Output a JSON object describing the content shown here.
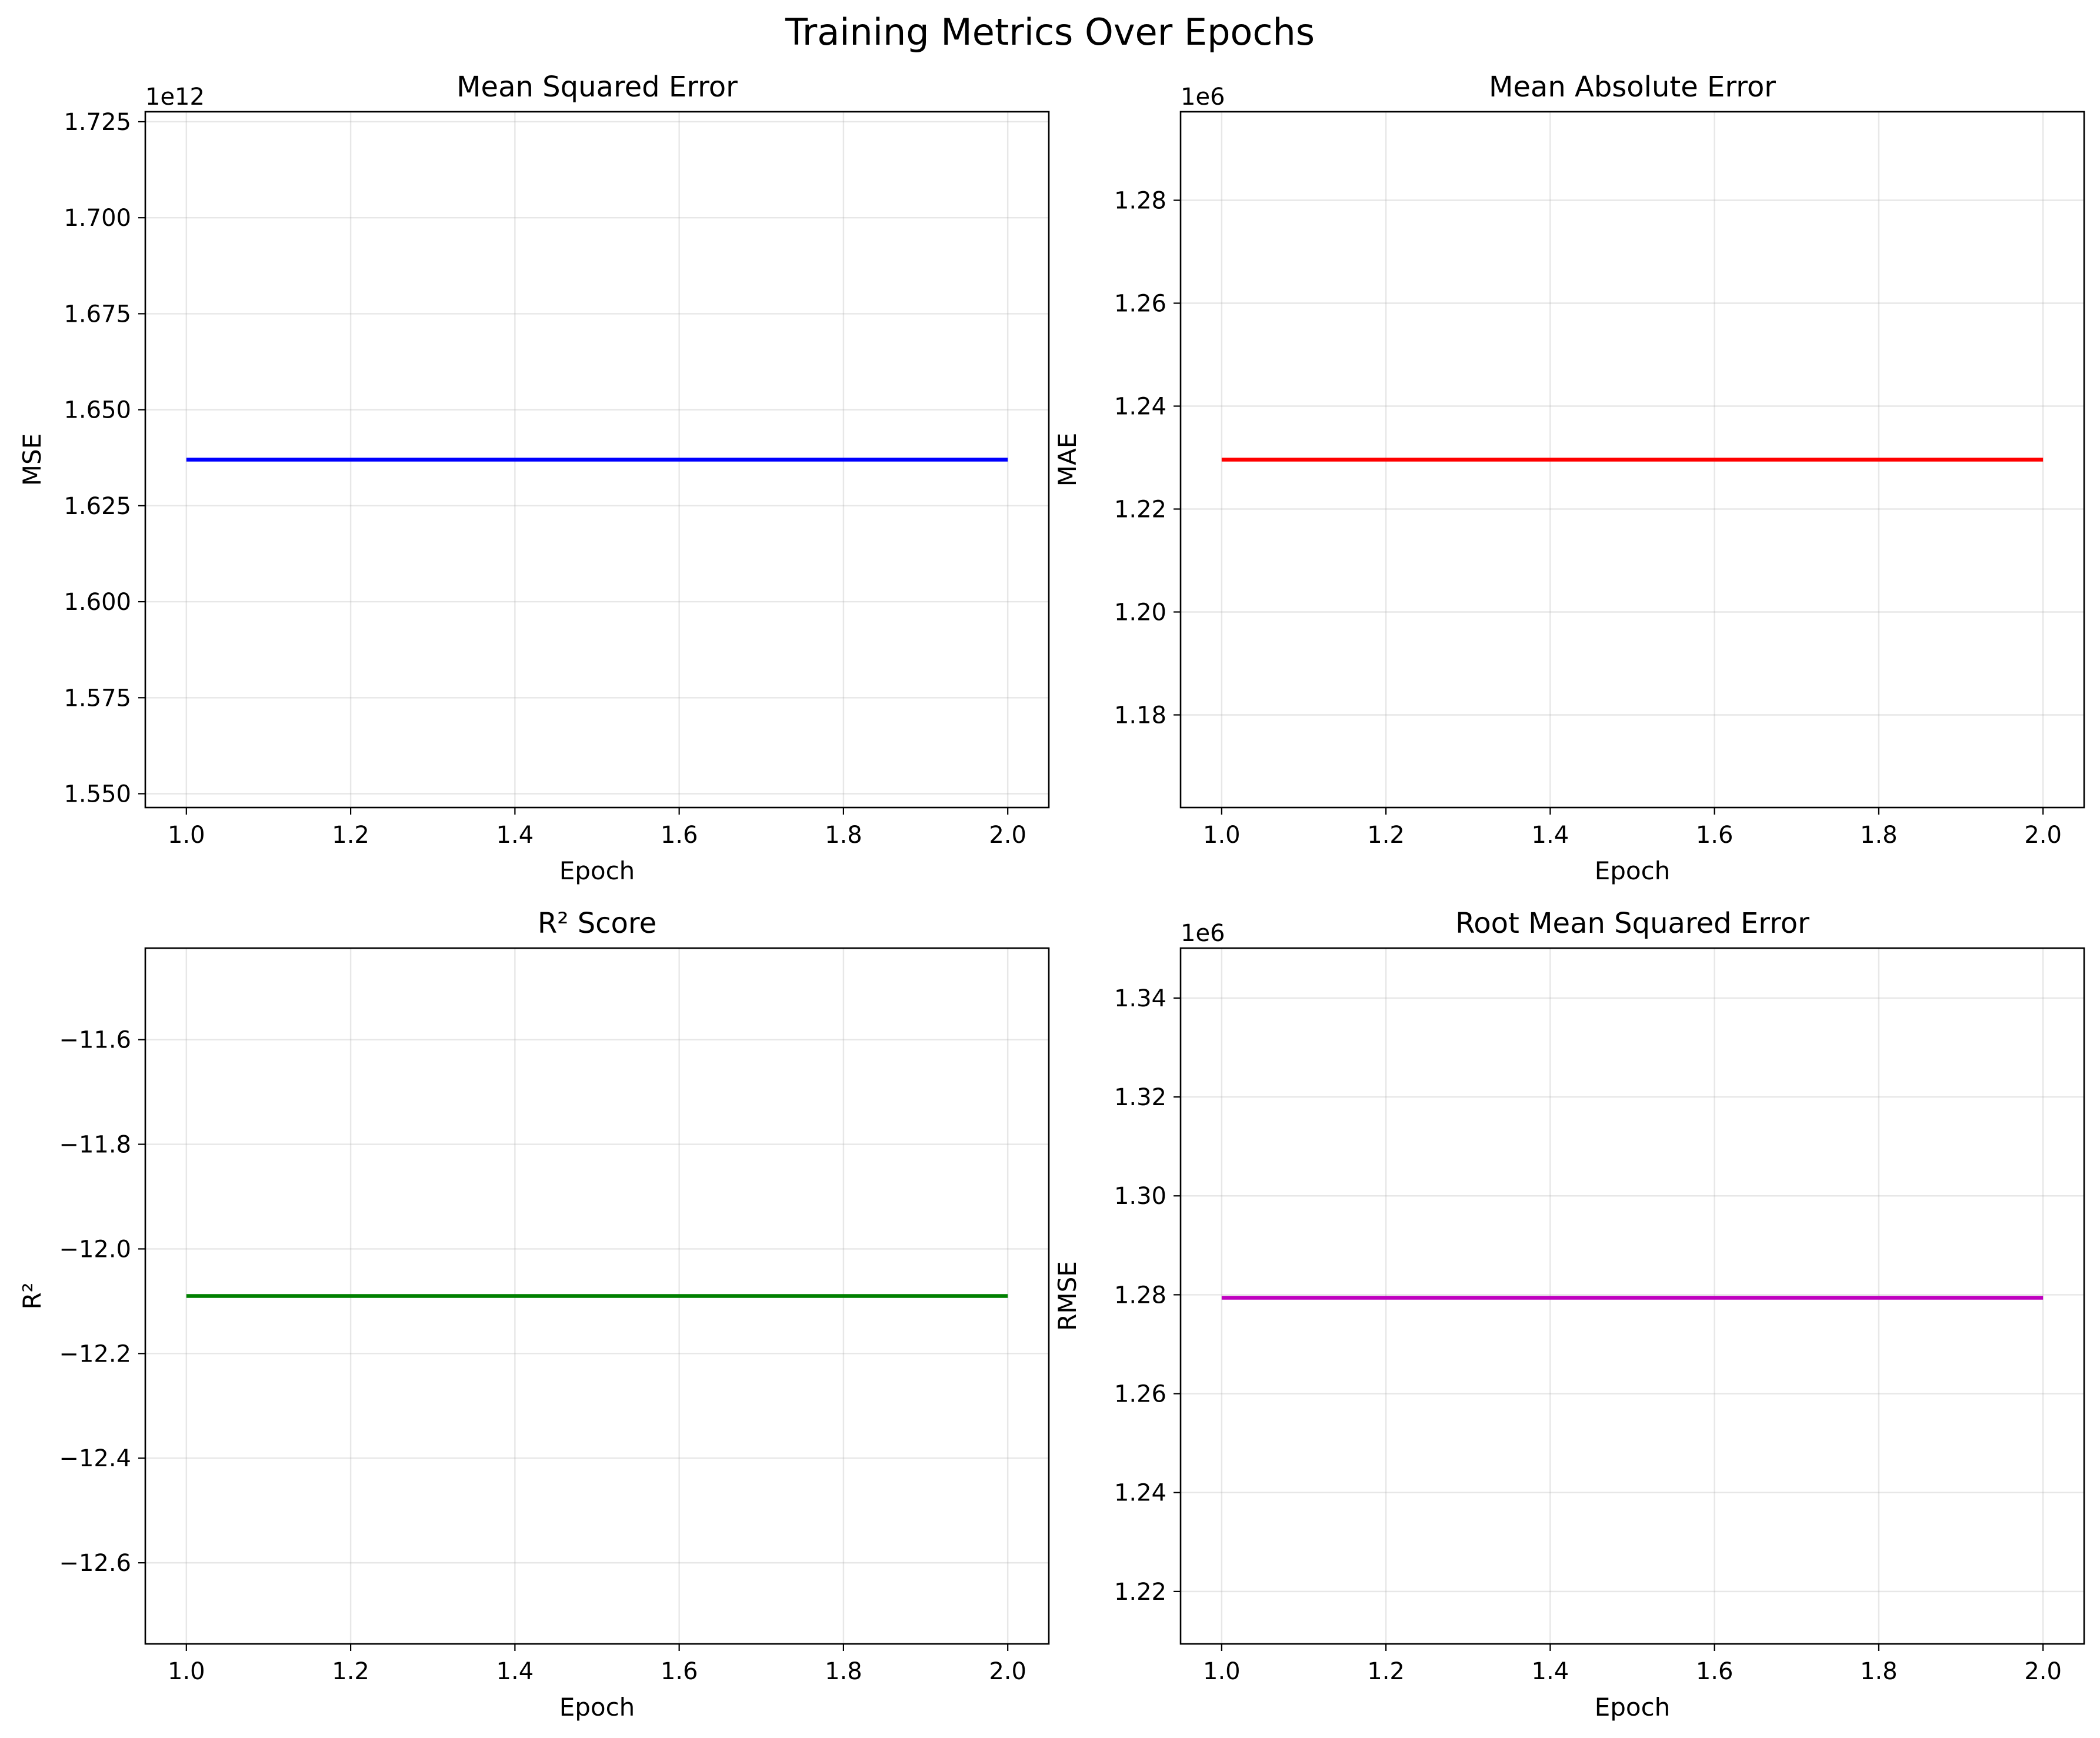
{
  "figure": {
    "suptitle": "Training Metrics Over Epochs"
  },
  "chart_data": [
    {
      "type": "line",
      "title": "Mean Squared Error",
      "xlabel": "Epoch",
      "ylabel": "MSE",
      "offset_text": "1e12",
      "xlim": [
        0.95,
        2.05
      ],
      "ylim": [
        1.5464,
        1.7276
      ],
      "xticks": [
        1.0,
        1.2,
        1.4,
        1.6,
        1.8,
        2.0
      ],
      "xtick_labels": [
        "1.0",
        "1.2",
        "1.4",
        "1.6",
        "1.8",
        "2.0"
      ],
      "yticks": [
        1.55,
        1.575,
        1.6,
        1.625,
        1.65,
        1.675,
        1.7,
        1.725
      ],
      "ytick_labels": [
        "1.550",
        "1.575",
        "1.600",
        "1.625",
        "1.650",
        "1.675",
        "1.700",
        "1.725"
      ],
      "grid": true,
      "series": [
        {
          "x": [
            1,
            2
          ],
          "y": [
            1.637,
            1.637
          ],
          "color": "#0000ff"
        }
      ]
    },
    {
      "type": "line",
      "title": "Mean Absolute Error",
      "xlabel": "Epoch",
      "ylabel": "MAE",
      "offset_text": "1e6",
      "xlim": [
        0.95,
        2.05
      ],
      "ylim": [
        1.162,
        1.2972
      ],
      "xticks": [
        1.0,
        1.2,
        1.4,
        1.6,
        1.8,
        2.0
      ],
      "xtick_labels": [
        "1.0",
        "1.2",
        "1.4",
        "1.6",
        "1.8",
        "2.0"
      ],
      "yticks": [
        1.18,
        1.2,
        1.22,
        1.24,
        1.26,
        1.28
      ],
      "ytick_labels": [
        "1.18",
        "1.20",
        "1.22",
        "1.24",
        "1.26",
        "1.28"
      ],
      "grid": true,
      "series": [
        {
          "x": [
            1,
            2
          ],
          "y": [
            1.2296,
            1.2296
          ],
          "color": "#ff0000"
        }
      ]
    },
    {
      "type": "line",
      "title": "R² Score",
      "xlabel": "Epoch",
      "ylabel": "R²",
      "offset_text": "",
      "xlim": [
        0.95,
        2.05
      ],
      "ylim": [
        -12.755,
        -11.425
      ],
      "xticks": [
        1.0,
        1.2,
        1.4,
        1.6,
        1.8,
        2.0
      ],
      "xtick_labels": [
        "1.0",
        "1.2",
        "1.4",
        "1.6",
        "1.8",
        "2.0"
      ],
      "yticks": [
        -12.6,
        -12.4,
        -12.2,
        -12.0,
        -11.8,
        -11.6
      ],
      "ytick_labels": [
        "−12.6",
        "−12.4",
        "−12.2",
        "−12.0",
        "−11.8",
        "−11.6"
      ],
      "grid": true,
      "series": [
        {
          "x": [
            1,
            2
          ],
          "y": [
            -12.09,
            -12.09
          ],
          "color": "#008000"
        }
      ]
    },
    {
      "type": "line",
      "title": "Root Mean Squared Error",
      "xlabel": "Epoch",
      "ylabel": "RMSE",
      "offset_text": "1e6",
      "xlim": [
        0.95,
        2.05
      ],
      "ylim": [
        1.2094,
        1.3501
      ],
      "xticks": [
        1.0,
        1.2,
        1.4,
        1.6,
        1.8,
        2.0
      ],
      "xtick_labels": [
        "1.0",
        "1.2",
        "1.4",
        "1.6",
        "1.8",
        "2.0"
      ],
      "yticks": [
        1.22,
        1.24,
        1.26,
        1.28,
        1.3,
        1.32,
        1.34
      ],
      "ytick_labels": [
        "1.22",
        "1.24",
        "1.26",
        "1.28",
        "1.30",
        "1.32",
        "1.34"
      ],
      "grid": true,
      "series": [
        {
          "x": [
            1,
            2
          ],
          "y": [
            1.2794,
            1.2794
          ],
          "color": "#bf00bf"
        }
      ]
    }
  ]
}
